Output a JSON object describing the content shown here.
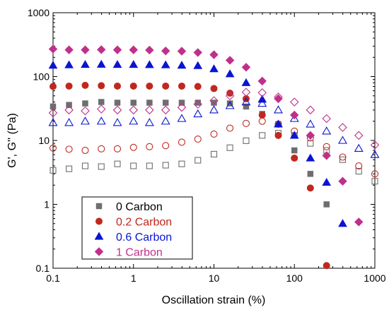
{
  "chart_data": {
    "type": "scatter",
    "title": "",
    "xlabel": "Oscillation strain (%)",
    "ylabel": "G', G'' (Pa)",
    "xscale": "log",
    "yscale": "log",
    "xlim": [
      0.1,
      1000
    ],
    "ylim": [
      0.1,
      1000
    ],
    "x_ticks": [
      "0.1",
      "1",
      "10",
      "100",
      "1000"
    ],
    "y_ticks": [
      "0.1",
      "1",
      "10",
      "100",
      "1000"
    ],
    "grid": false,
    "legend_position": "bottom-left",
    "series": [
      {
        "name": "0 Carbon",
        "color": "#6e6e6e",
        "marker": "square",
        "x": [
          0.1,
          0.158,
          0.251,
          0.398,
          0.631,
          1.0,
          1.58,
          2.51,
          3.98,
          6.31,
          10.0,
          15.8,
          25.1,
          39.8,
          63.1,
          100,
          158,
          251,
          398,
          631,
          1000
        ],
        "G_prime": [
          34,
          36,
          38,
          40,
          39,
          39,
          39,
          39,
          39,
          39,
          39,
          38,
          34,
          26,
          18,
          7,
          3,
          1.0,
          null,
          null,
          null
        ],
        "G_double_prime": [
          3.4,
          3.6,
          4.0,
          3.9,
          4.3,
          4.0,
          4.0,
          4.1,
          4.3,
          4.9,
          6.1,
          7.7,
          9.9,
          12,
          13,
          12,
          9,
          7,
          5,
          3.3,
          2.3
        ]
      },
      {
        "name": "0.2 Carbon",
        "color": "#c0281e",
        "marker": "circle",
        "x": [
          0.1,
          0.158,
          0.251,
          0.398,
          0.631,
          1.0,
          1.58,
          2.51,
          3.98,
          6.31,
          10.0,
          15.8,
          25.1,
          39.8,
          63.1,
          100,
          158,
          251,
          398,
          631,
          1000
        ],
        "G_prime": [
          70,
          71,
          73,
          72,
          71,
          71,
          71,
          71,
          71,
          70,
          65,
          55,
          45,
          25,
          12,
          5.3,
          1.8,
          0.11,
          null,
          null,
          null
        ],
        "G_double_prime": [
          7.6,
          7.3,
          7.0,
          7.4,
          7.4,
          7.8,
          8.0,
          8.3,
          9.4,
          10.5,
          12.6,
          15.6,
          18.5,
          20,
          18,
          14,
          11,
          8,
          5.5,
          4.0,
          3.0
        ]
      },
      {
        "name": "0.6 Carbon",
        "color": "#0a14d2",
        "marker": "triangle",
        "x": [
          0.1,
          0.158,
          0.251,
          0.398,
          0.631,
          1.0,
          1.58,
          2.51,
          3.98,
          6.31,
          10.0,
          15.8,
          25.1,
          39.8,
          63.1,
          100,
          158,
          251,
          398,
          631,
          1000
        ],
        "G_prime": [
          150,
          152,
          154,
          155,
          154,
          154,
          153,
          152,
          150,
          148,
          132,
          110,
          80,
          44,
          18,
          12,
          5.3,
          2.2,
          0.5,
          null,
          null
        ],
        "G_double_prime": [
          19,
          19,
          20,
          20,
          19,
          20,
          19,
          20,
          22,
          26,
          30,
          35,
          40,
          38,
          30,
          22,
          18,
          14,
          10,
          7.5,
          6
        ]
      },
      {
        "name": "1 Carbon",
        "color": "#c0308a",
        "marker": "diamond",
        "x": [
          0.1,
          0.158,
          0.251,
          0.398,
          0.631,
          1.0,
          1.58,
          2.51,
          3.98,
          6.31,
          10.0,
          15.8,
          25.1,
          39.8,
          63.1,
          100,
          158,
          251,
          398,
          631,
          1000
        ],
        "G_prime": [
          270,
          262,
          262,
          264,
          262,
          262,
          260,
          252,
          250,
          238,
          220,
          180,
          140,
          85,
          45,
          25,
          12,
          5.8,
          2.3,
          0.53,
          null
        ],
        "G_double_prime": [
          27,
          30,
          29,
          31,
          30,
          30,
          30,
          30,
          33,
          37,
          42,
          50,
          57,
          56,
          48,
          40,
          30,
          22,
          16,
          12,
          8.5
        ]
      }
    ]
  }
}
